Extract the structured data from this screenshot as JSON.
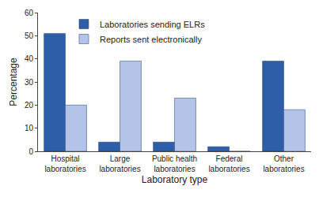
{
  "chart_data": {
    "type": "bar",
    "x_label": "Laboratory type",
    "y_label": "Percentage",
    "categories": [
      "Hospital laboratories",
      "Large laboratories",
      "Public health laboratories",
      "Federal laboratories",
      "Other laboratories"
    ],
    "series": [
      {
        "name": "Laboratories sending ELRs",
        "color": "#2e5ea8",
        "values": [
          51,
          4,
          4,
          2,
          39
        ]
      },
      {
        "name": "Reports sent electronically",
        "color": "#b3c4e8",
        "values": [
          20,
          39,
          23,
          0,
          18
        ]
      }
    ],
    "ylim": [
      0,
      60
    ],
    "yticks": [
      0,
      10,
      20,
      30,
      40,
      50,
      60
    ],
    "grid": false,
    "legend": "top left"
  }
}
